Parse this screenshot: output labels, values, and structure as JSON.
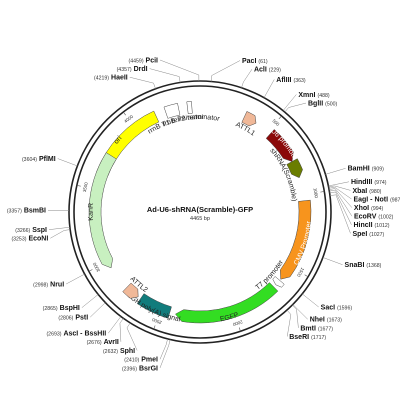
{
  "plasmid": {
    "name": "Ad-U6-shRNA(Scramble)-GFP",
    "length_label": "4465 bp",
    "length_bp": 4465
  },
  "tick_labels": [
    "500",
    "1000",
    "1500",
    "2000",
    "2500",
    "3000",
    "3500",
    "4000"
  ],
  "features": [
    {
      "name": "ori",
      "label": "ori",
      "start": 3560,
      "end": 4160,
      "dir": -1,
      "color": "#ffff00",
      "text_color": "#222222"
    },
    {
      "name": "rrnb-t1-terminator",
      "label": "rrnB T1 terminator",
      "start": 4230,
      "end": 4320,
      "dir": 0,
      "color": "#ffffff",
      "text_color": "#222222"
    },
    {
      "name": "rrnb-t2-terminator",
      "label": "rrnB T2 terminator",
      "start": 4380,
      "end": 4410,
      "dir": 0,
      "color": "#ffffff",
      "text_color": "#222222"
    },
    {
      "name": "attl1",
      "label": "ATTL1",
      "start": 310,
      "end": 400,
      "dir": 1,
      "color": "#f0b898",
      "text_color": "#222222"
    },
    {
      "name": "u6-promoter",
      "label": "U6 promoter",
      "start": 520,
      "end": 760,
      "dir": 1,
      "color": "#8b0a0a",
      "text_color": "#ffffff"
    },
    {
      "name": "shrna-scramble",
      "label": "shRNA(Scramble)",
      "start": 760,
      "end": 880,
      "dir": 1,
      "color": "#6a7d00",
      "text_color": "#222222"
    },
    {
      "name": "cmv-promoter",
      "label": "CMV Promoter",
      "start": 1040,
      "end": 1610,
      "dir": 1,
      "color": "#f7941d",
      "text_color": "#ffffff"
    },
    {
      "name": "t7-promoter",
      "label": "T7 promoter",
      "start": 1620,
      "end": 1660,
      "dir": 1,
      "color": "#ffffff",
      "text_color": "#222222"
    },
    {
      "name": "egfp",
      "label": "EGFP",
      "start": 1680,
      "end": 2400,
      "dir": 1,
      "color": "#33dd22",
      "text_color": "#222222"
    },
    {
      "name": "bgh-polya-signal",
      "label": "bGH poly(A) signal",
      "start": 2440,
      "end": 2660,
      "dir": 0,
      "color": "#117c7c",
      "text_color": "#222222"
    },
    {
      "name": "attl2",
      "label": "ATTL2",
      "start": 2680,
      "end": 2780,
      "dir": -1,
      "color": "#f0b898",
      "text_color": "#222222"
    },
    {
      "name": "kanr",
      "label": "KanR",
      "start": 2950,
      "end": 3750,
      "dir": -1,
      "color": "#c8f0c0",
      "text_color": "#222222"
    }
  ],
  "sites": [
    {
      "name": "PciI",
      "pos": "(4459)",
      "bp": 4459
    },
    {
      "name": "PacI",
      "pos": "(61)",
      "bp": 61
    },
    {
      "name": "DrdI",
      "pos": "(4357)",
      "bp": 4357
    },
    {
      "name": "AclI",
      "pos": "(229)",
      "bp": 229
    },
    {
      "name": "HaeII",
      "pos": "(4219)",
      "bp": 4219
    },
    {
      "name": "AflIII",
      "pos": "(363)",
      "bp": 363
    },
    {
      "name": "XmnI",
      "pos": "(488)",
      "bp": 488
    },
    {
      "name": "BglII",
      "pos": "(500)",
      "bp": 500
    },
    {
      "name": "BamHI",
      "pos": "(909)",
      "bp": 909
    },
    {
      "name": "HindIII",
      "pos": "(974)",
      "bp": 974
    },
    {
      "name": "XbaI",
      "pos": "(980)",
      "bp": 980
    },
    {
      "name": "EagI - NotI",
      "pos": "(987)",
      "bp": 987
    },
    {
      "name": "XhoI",
      "pos": "(994)",
      "bp": 994
    },
    {
      "name": "EcoRV",
      "pos": "(1002)",
      "bp": 1002
    },
    {
      "name": "HincII",
      "pos": "(1012)",
      "bp": 1012
    },
    {
      "name": "SpeI",
      "pos": "(1027)",
      "bp": 1027
    },
    {
      "name": "SnaBI",
      "pos": "(1368)",
      "bp": 1368
    },
    {
      "name": "SacI",
      "pos": "(1596)",
      "bp": 1596
    },
    {
      "name": "NheI",
      "pos": "(1673)",
      "bp": 1673
    },
    {
      "name": "BmtI",
      "pos": "(1677)",
      "bp": 1677
    },
    {
      "name": "BseRI",
      "pos": "(1717)",
      "bp": 1717
    },
    {
      "name": "PflMI",
      "pos": "(3604)",
      "bp": 3604
    },
    {
      "name": "BsmBI",
      "pos": "(3357)",
      "bp": 3357
    },
    {
      "name": "SspI",
      "pos": "(3266)",
      "bp": 3266
    },
    {
      "name": "EcoNI",
      "pos": "(3253)",
      "bp": 3253
    },
    {
      "name": "NruI",
      "pos": "(2998)",
      "bp": 2998
    },
    {
      "name": "BspHI",
      "pos": "(2865)",
      "bp": 2865
    },
    {
      "name": "PstI",
      "pos": "(2806)",
      "bp": 2806
    },
    {
      "name": "AscI - BssHII",
      "pos": "(2693)",
      "bp": 2693
    },
    {
      "name": "AvrII",
      "pos": "(2676)",
      "bp": 2676
    },
    {
      "name": "SphI",
      "pos": "(2632)",
      "bp": 2632
    },
    {
      "name": "PmeI",
      "pos": "(2410)",
      "bp": 2410
    },
    {
      "name": "BsrGI",
      "pos": "(2396)",
      "bp": 2396
    }
  ],
  "colors": {
    "backbone": "#222222",
    "tick": "#555555",
    "leader": "#888888"
  }
}
